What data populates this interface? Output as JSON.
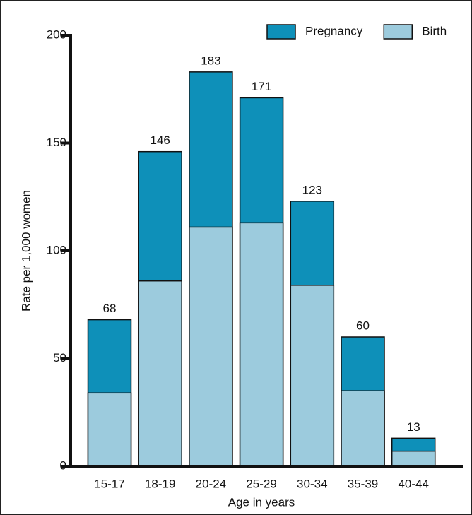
{
  "chart_data": {
    "type": "bar",
    "x_label": "Age in years",
    "y_label": "Rate per 1,000 women",
    "categories": [
      "15-17",
      "18-19",
      "20-24",
      "25-29",
      "30-34",
      "35-39",
      "40-44"
    ],
    "series": [
      {
        "name": "Pregnancy",
        "color": "#0e90b9",
        "values": [
          68,
          146,
          183,
          171,
          123,
          60,
          13
        ]
      },
      {
        "name": "Birth",
        "color": "#9ccbdd",
        "values": [
          34,
          86,
          111,
          113,
          84,
          35,
          7
        ]
      }
    ],
    "ylim": [
      0,
      200
    ],
    "yticks": [
      0,
      50,
      100,
      150,
      200
    ],
    "legend": "top-right",
    "value_labels_series": 0
  }
}
